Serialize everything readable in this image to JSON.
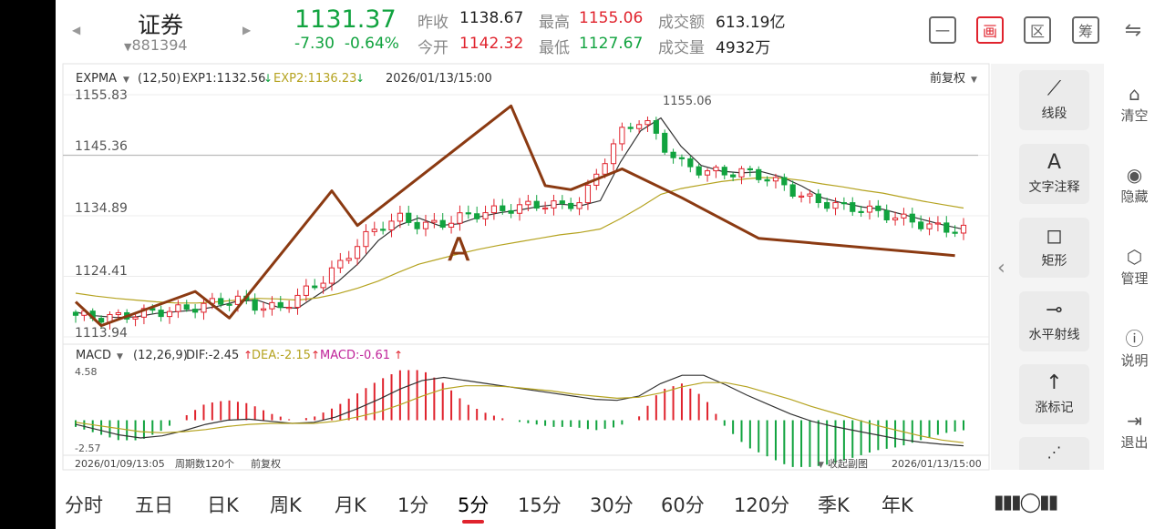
{
  "header": {
    "name": "证券",
    "code": "881394",
    "price": "1131.37",
    "change": "-7.30",
    "change_pct": "-0.64%",
    "prev_close_label": "昨收",
    "prev_close": "1138.67",
    "open_label": "今开",
    "open": "1142.32",
    "high_label": "最高",
    "high": "1155.06",
    "low_label": "最低",
    "low": "1127.67",
    "amount_label": "成交额",
    "amount": "613.19亿",
    "volume_label": "成交量",
    "volume": "4932万"
  },
  "toolbar": {
    "b1": "一",
    "b2": "画",
    "b3": "区",
    "b4": "筹"
  },
  "main_legend": {
    "indicator": "EXPMA",
    "params": "(12,50)",
    "exp1": "EXP1:1132.56",
    "exp2": "EXP2:1136.23",
    "datetime": "2026/01/13/15:00",
    "adjust": "前复权"
  },
  "y_labels": [
    "1155.83",
    "1145.36",
    "1134.89",
    "1124.41",
    "1113.94"
  ],
  "peak_label": "1155.06",
  "annotation_a": "A",
  "macd_legend": {
    "indicator": "MACD",
    "params": "(12,26,9)",
    "dif": "DIF:-2.45",
    "dea": "DEA:-2.15",
    "macd": "MACD:-0.61",
    "ymax": "4.58",
    "ymin": "-2.57"
  },
  "footer": {
    "start": "2026/01/09/13:05",
    "periods": "周期数120个",
    "adjust": "前复权",
    "collapse": "收起副图",
    "end": "2026/01/13/15:00"
  },
  "colors": {
    "up": "#e0232d",
    "down": "#11a33f",
    "drawing": "#8b3a12",
    "exp1": "#333333",
    "exp2": "#b5a320",
    "dea": "#b5a320"
  },
  "chart_data": {
    "type": "candlestick",
    "ylim": [
      1113.94,
      1155.83
    ],
    "reference_line": 1145.36,
    "exp_series": [
      {
        "name": "EXP1",
        "values": [
          1118.2,
          1117.6,
          1117.3,
          1117.4,
          1118.0,
          1118.3,
          1118.6,
          1119.2,
          1120.1,
          1120.3,
          1119.1,
          1118.9,
          1121.2,
          1123.5,
          1126.6,
          1130.6,
          1133.2,
          1134.5,
          1133.2,
          1133.5,
          1134.7,
          1135.4,
          1135.9,
          1136.5,
          1136.9,
          1136.6,
          1137.5,
          1144.2,
          1149.6,
          1151.8,
          1146.9,
          1143.6,
          1142.6,
          1142.3,
          1142.5,
          1141.6,
          1140.0,
          1138.0,
          1137.1,
          1136.4,
          1136.0,
          1135.1,
          1134.2,
          1133.3,
          1132.56
        ]
      },
      {
        "name": "EXP2",
        "values": [
          1121.5,
          1121.0,
          1120.6,
          1120.3,
          1120.0,
          1119.8,
          1119.8,
          1120.0,
          1120.3,
          1120.6,
          1120.5,
          1120.3,
          1120.7,
          1121.4,
          1122.4,
          1123.6,
          1125.1,
          1126.5,
          1127.4,
          1128.3,
          1129.1,
          1129.8,
          1130.4,
          1131.0,
          1131.6,
          1132.0,
          1132.6,
          1134.4,
          1136.4,
          1138.6,
          1139.6,
          1140.2,
          1140.8,
          1141.2,
          1141.5,
          1141.4,
          1141.0,
          1140.4,
          1139.9,
          1139.3,
          1138.8,
          1138.1,
          1137.4,
          1136.8,
          1136.23
        ]
      }
    ],
    "drawn_trendline": [
      [
        0,
        1120.0
      ],
      [
        3,
        1115.9
      ],
      [
        14,
        1121.8
      ],
      [
        18,
        1117.2
      ],
      [
        30,
        1139.2
      ],
      [
        33,
        1133.2
      ],
      [
        51,
        1153.9
      ],
      [
        55,
        1140.1
      ],
      [
        58,
        1139.4
      ],
      [
        64,
        1143.0
      ],
      [
        71,
        1138.0
      ],
      [
        80,
        1131.0
      ],
      [
        103,
        1128.0
      ]
    ],
    "macd": {
      "ylim": [
        -2.57,
        4.58
      ],
      "dif": [
        -0.4,
        -0.9,
        -1.4,
        -1.7,
        -1.5,
        -1.0,
        -0.4,
        0.0,
        0.1,
        -0.1,
        -0.3,
        -0.2,
        0.3,
        1.1,
        2.0,
        3.0,
        3.8,
        4.1,
        3.8,
        3.5,
        3.2,
        2.9,
        2.6,
        2.3,
        2.0,
        1.9,
        2.3,
        3.5,
        4.3,
        4.3,
        3.4,
        2.4,
        1.5,
        0.6,
        -0.1,
        -0.6,
        -1.0,
        -1.4,
        -1.8,
        -2.1,
        -2.3,
        -2.45
      ],
      "dea": [
        -0.2,
        -0.5,
        -0.8,
        -1.1,
        -1.2,
        -1.1,
        -0.9,
        -0.6,
        -0.4,
        -0.3,
        -0.3,
        -0.3,
        -0.1,
        0.3,
        0.8,
        1.5,
        2.3,
        3.0,
        3.3,
        3.3,
        3.2,
        3.0,
        2.8,
        2.5,
        2.3,
        2.1,
        2.2,
        2.6,
        3.2,
        3.6,
        3.6,
        3.2,
        2.6,
        2.0,
        1.3,
        0.7,
        0.1,
        -0.5,
        -1.0,
        -1.5,
        -1.9,
        -2.15
      ]
    }
  },
  "tools": [
    {
      "icon": "line-segment-icon",
      "label": "线段"
    },
    {
      "icon": "text-note-icon",
      "label": "文字注释"
    },
    {
      "icon": "rectangle-icon",
      "label": "矩形"
    },
    {
      "icon": "horizontal-ray-icon",
      "label": "水平射线"
    },
    {
      "icon": "rise-mark-icon",
      "label": "涨标记"
    }
  ],
  "side": [
    {
      "label": "清空"
    },
    {
      "label": "隐藏"
    },
    {
      "label": "管理"
    },
    {
      "label": "说明"
    },
    {
      "label": "退出"
    }
  ],
  "tabs": [
    "分时",
    "五日",
    "日K",
    "周K",
    "月K",
    "1分",
    "5分",
    "15分",
    "30分",
    "60分",
    "120分",
    "季K",
    "年K"
  ],
  "active_tab": "5分"
}
